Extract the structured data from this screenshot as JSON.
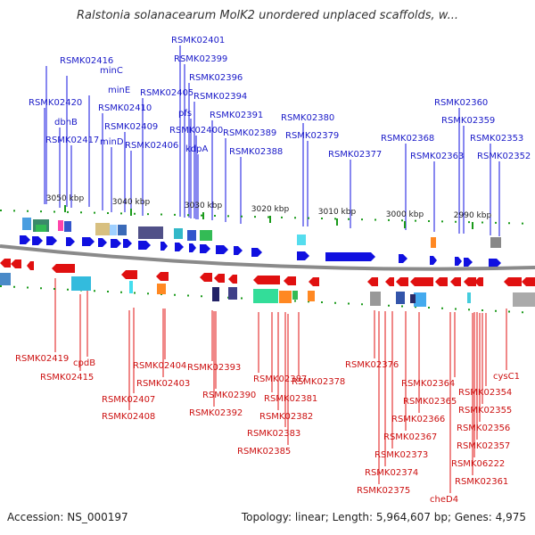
{
  "title": "Ralstonia solanacearum MolK2 unordered unplaced scaffolds, w...",
  "footer": {
    "accession": "Accession: NS_000197",
    "topology": "Topology: linear; Length: 5,964,607 bp; Genes: 4,975"
  },
  "colors": {
    "forward": "#1010e0",
    "reverse": "#e01010",
    "backbone": "#888888",
    "tick": "#1a9a1a",
    "top_label": "#1a1ac8",
    "bottom_label": "#cc1111"
  },
  "ticks": [
    "3050 kbp",
    "3040 kbp",
    "3030 kbp",
    "3020 kbp",
    "3010 kbp",
    "3000 kbp",
    "2990 kbp"
  ],
  "top_genes": [
    "RSMK02416",
    "minC",
    "RSMK02420",
    "minE",
    "dbhB",
    "RSMK02410",
    "RSMK02417",
    "minD",
    "RSMK02409",
    "RSMK02405",
    "RSMK02406",
    "RSMK02401",
    "RSMK02399",
    "RSMK02396",
    "RSMK02394",
    "pfs",
    "RSMK02400",
    "kdpA",
    "RSMK02391",
    "RSMK02389",
    "RSMK02388",
    "RSMK02380",
    "RSMK02379",
    "RSMK02377",
    "RSMK02368",
    "RSMK02363",
    "RSMK02360",
    "RSMK02359",
    "RSMK02353",
    "RSMK02352"
  ],
  "bottom_genes": [
    "RSMK02419",
    "cpdB",
    "RSMK02415",
    "RSMK02404",
    "RSMK02407",
    "RSMK02403",
    "RSMK02408",
    "RSMK02393",
    "RSMK02390",
    "RSMK02392",
    "RSMK02387",
    "RSMK02381",
    "RSMK02382",
    "RSMK02383",
    "RSMK02385",
    "RSMK02378",
    "RSMK02376",
    "RSMK02364",
    "RSMK02365",
    "RSMK02366",
    "RSMK02367",
    "RSMK02373",
    "RSMK02374",
    "RSMK02375",
    "cheD4",
    "RSMK02361",
    "cysC1",
    "RSMK02354",
    "RSMK02355",
    "RSMK02356",
    "RSMK02357",
    "RSMK06222"
  ]
}
